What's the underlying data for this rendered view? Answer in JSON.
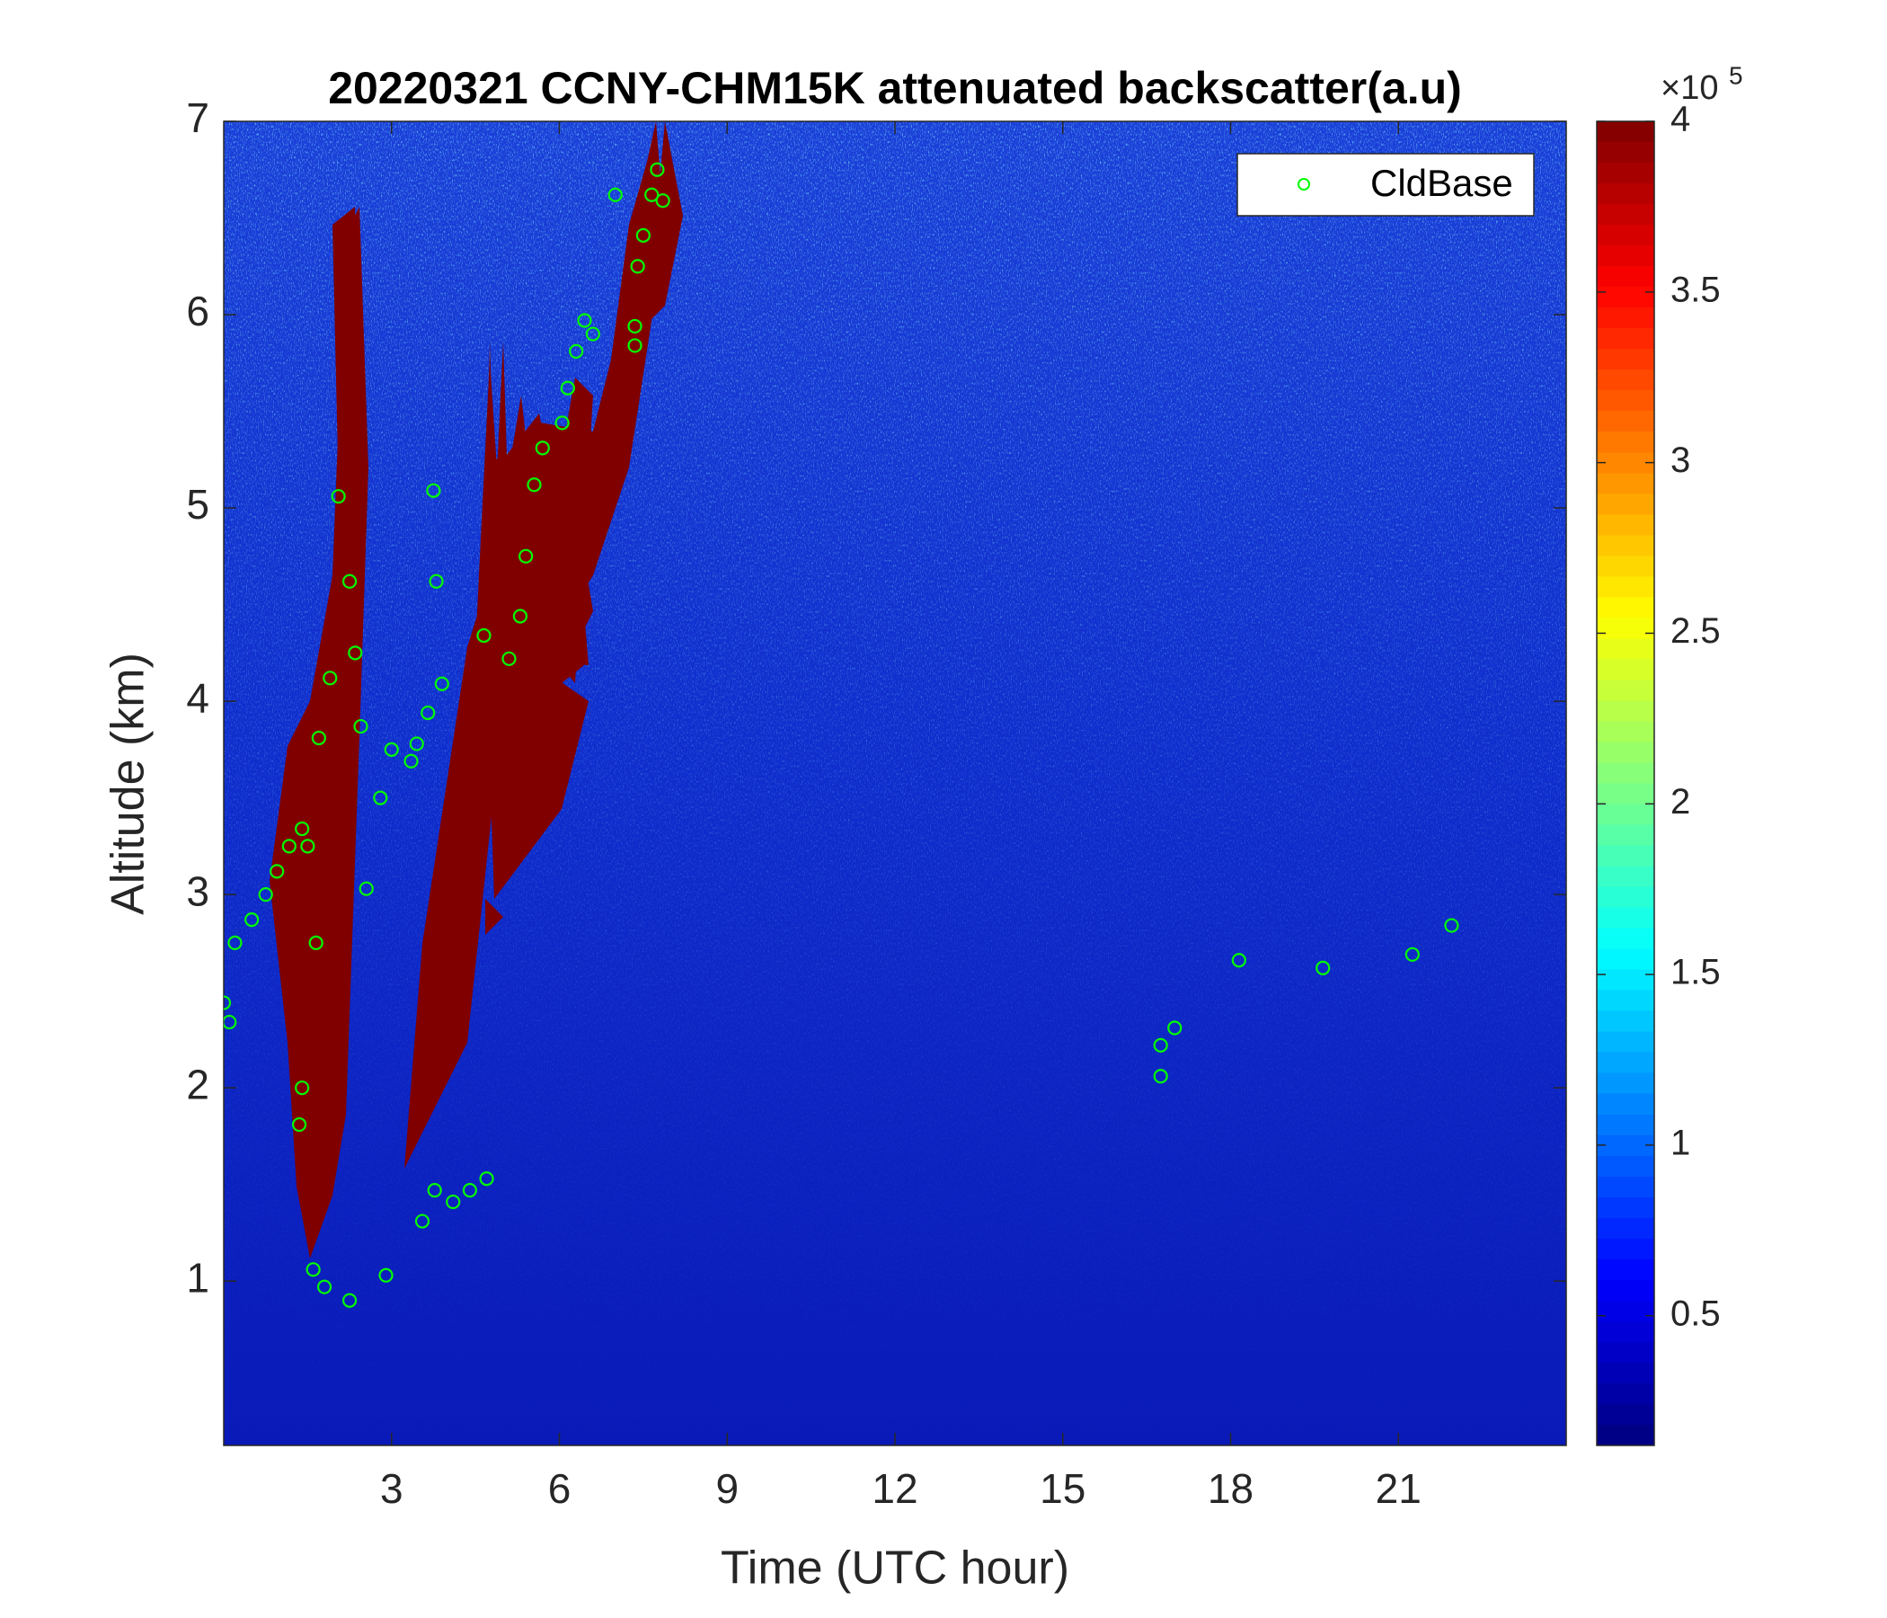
{
  "chart_data": {
    "type": "heatmap-scatter",
    "title": "20220321 CCNY-CHM15K attenuated backscatter(a.u)",
    "xlabel": "Time (UTC hour)",
    "ylabel": "Altitude (km)",
    "xlim": [
      0,
      24
    ],
    "xticks": [
      3,
      6,
      9,
      12,
      15,
      18,
      21
    ],
    "ylim": [
      0.15,
      7
    ],
    "yticks": [
      1,
      2,
      3,
      4,
      5,
      6,
      7
    ],
    "colormap": "jet",
    "colorbar_lim": [
      0.12,
      4
    ],
    "colorbar_ticks": [
      0.5,
      1,
      1.5,
      2,
      2.5,
      3,
      3.5,
      4
    ],
    "colorbar_exponent_base": "×10",
    "colorbar_exponent": "5",
    "legend_position": "upper right",
    "series": [
      {
        "name": "CldBase",
        "color": "#00ff00",
        "x": [
          0.0,
          0.1,
          0.2,
          0.5,
          0.75,
          0.95,
          1.17,
          1.4,
          1.5,
          1.65,
          1.4,
          1.35,
          1.6,
          1.8,
          2.25,
          2.9,
          1.7,
          1.9,
          2.05,
          2.25,
          2.35,
          2.45,
          2.55,
          2.8,
          3.0,
          3.35,
          3.45,
          3.65,
          3.8,
          3.9,
          3.75,
          3.55,
          3.77,
          4.1,
          4.4,
          4.7,
          4.65,
          5.1,
          5.3,
          5.4,
          5.55,
          5.7,
          6.05,
          6.15,
          6.3,
          6.45,
          6.6,
          7.0,
          7.35,
          7.35,
          7.4,
          7.5,
          7.65,
          7.75,
          7.85,
          16.75,
          16.75,
          17.0,
          18.15,
          19.65,
          21.25,
          21.95
        ],
        "values": [
          2.44,
          2.34,
          2.75,
          2.87,
          3.0,
          3.12,
          3.25,
          3.34,
          3.25,
          2.75,
          2.0,
          1.81,
          1.06,
          0.97,
          0.9,
          1.03,
          3.81,
          4.12,
          5.06,
          4.62,
          4.25,
          3.87,
          3.03,
          3.5,
          3.75,
          3.69,
          3.78,
          3.94,
          4.62,
          4.09,
          5.09,
          1.31,
          1.47,
          1.41,
          1.47,
          1.53,
          4.34,
          4.22,
          4.44,
          4.75,
          5.12,
          5.31,
          5.44,
          5.62,
          5.81,
          5.97,
          5.9,
          6.62,
          5.94,
          5.84,
          6.25,
          6.41,
          6.62,
          6.75,
          6.59,
          2.06,
          2.22,
          2.31,
          2.66,
          2.62,
          2.69,
          2.84
        ]
      }
    ]
  }
}
